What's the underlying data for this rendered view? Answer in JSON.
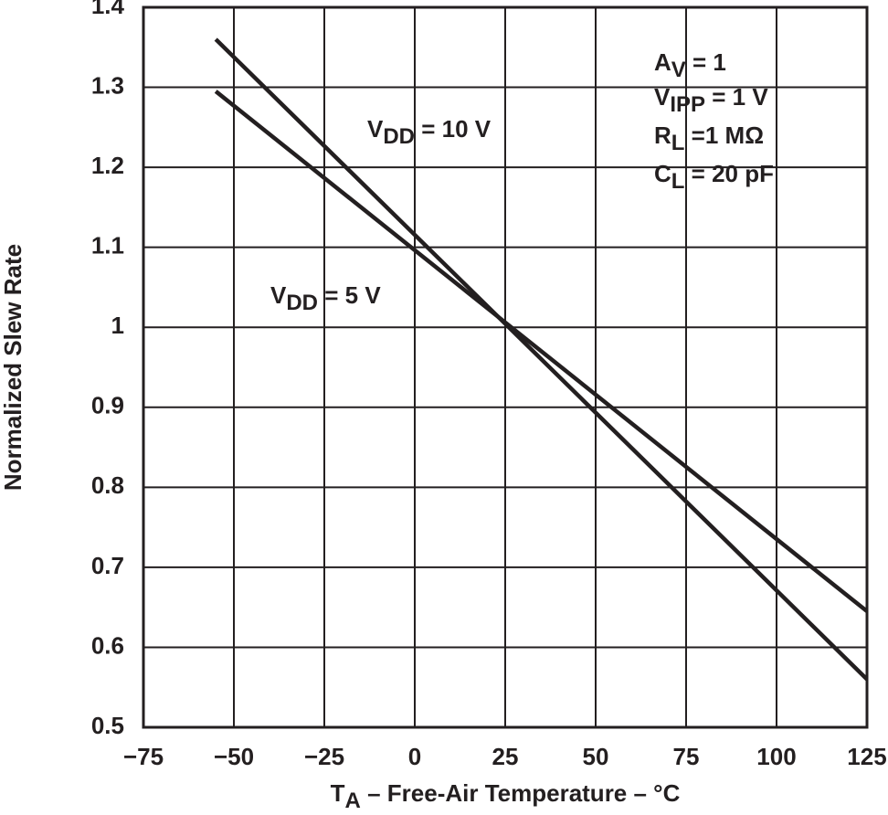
{
  "chart_data": {
    "type": "line",
    "y_label": "Normalized Slew Rate",
    "x_label": {
      "text": "T",
      "sub": "A",
      "rest": " – Free-Air Temperature – °C"
    },
    "xlim": [
      -75,
      125
    ],
    "ylim": [
      0.5,
      1.4
    ],
    "xticks": [
      {
        "value": -75,
        "label": "−75"
      },
      {
        "value": -50,
        "label": "−50"
      },
      {
        "value": -25,
        "label": "−25"
      },
      0,
      25,
      50,
      75,
      100,
      125
    ],
    "yticks": [
      0.5,
      0.6,
      0.7,
      0.8,
      0.9,
      1,
      1.1,
      1.2,
      1.3,
      1.4
    ],
    "grid": true,
    "series": [
      {
        "color": "#231f20",
        "x": [
          -55,
          125
        ],
        "values": [
          1.36,
          0.56
        ]
      },
      {
        "color": "#231f20",
        "x": [
          -55,
          125
        ],
        "values": [
          1.295,
          0.645
        ]
      }
    ],
    "annotations": [
      {
        "text": "V",
        "sub": "DD",
        "rest": " = 10 V"
      },
      {
        "text": "V",
        "sub": "DD",
        "rest": " = 5 V"
      },
      {
        "text": "A",
        "sub": "V",
        "rest": " = 1"
      },
      {
        "text": "V",
        "sub": "IPP",
        "rest": " = 1 V"
      },
      {
        "text": "R",
        "sub": "L",
        "rest": " =1 MΩ"
      },
      {
        "text": "C",
        "sub": "L",
        "rest": " = 20 pF"
      }
    ]
  }
}
